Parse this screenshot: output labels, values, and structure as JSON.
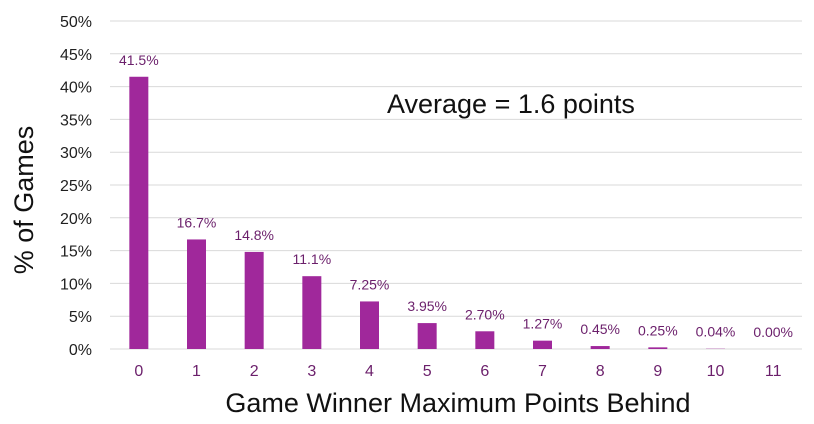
{
  "chart_data": {
    "type": "bar",
    "categories": [
      "0",
      "1",
      "2",
      "3",
      "4",
      "5",
      "6",
      "7",
      "8",
      "9",
      "10",
      "11"
    ],
    "values": [
      41.5,
      16.7,
      14.8,
      11.1,
      7.25,
      3.95,
      2.7,
      1.27,
      0.45,
      0.25,
      0.04,
      0.0
    ],
    "data_labels": [
      "41.5%",
      "16.7%",
      "14.8%",
      "11.1%",
      "7.25%",
      "3.95%",
      "2.70%",
      "1.27%",
      "0.45%",
      "0.25%",
      "0.04%",
      "0.00%"
    ],
    "y_ticks": [
      "0%",
      "5%",
      "10%",
      "15%",
      "20%",
      "25%",
      "30%",
      "35%",
      "40%",
      "45%",
      "50%"
    ],
    "title": "",
    "xlabel": "Game Winner Maximum Points Behind",
    "ylabel": "% of Games",
    "ylim": [
      0,
      50
    ],
    "grid": true,
    "annotation": "Average = 1.6 points",
    "colors": {
      "bar": "#a0289b",
      "label": "#6b1f6b",
      "grid": "#d9d9d9"
    }
  }
}
